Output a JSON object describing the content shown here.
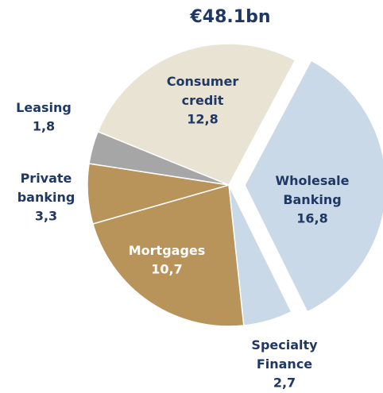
{
  "chart_data": {
    "type": "pie",
    "title": "€48.1bn",
    "categories": [
      "Wholesale Banking",
      "Specialty Finance",
      "Mortgages",
      "Private banking",
      "Leasing",
      "Consumer credit"
    ],
    "values": [
      16.8,
      2.7,
      10.7,
      3.3,
      1.8,
      12.8
    ],
    "value_labels": [
      "16,8",
      "2,7",
      "10,7",
      "3,3",
      "1,8",
      "12,8"
    ],
    "colors": [
      "#c9d9e8",
      "#c9d9e8",
      "#b8935a",
      "#b8935a",
      "#a6a6a6",
      "#e8e3d3"
    ]
  }
}
